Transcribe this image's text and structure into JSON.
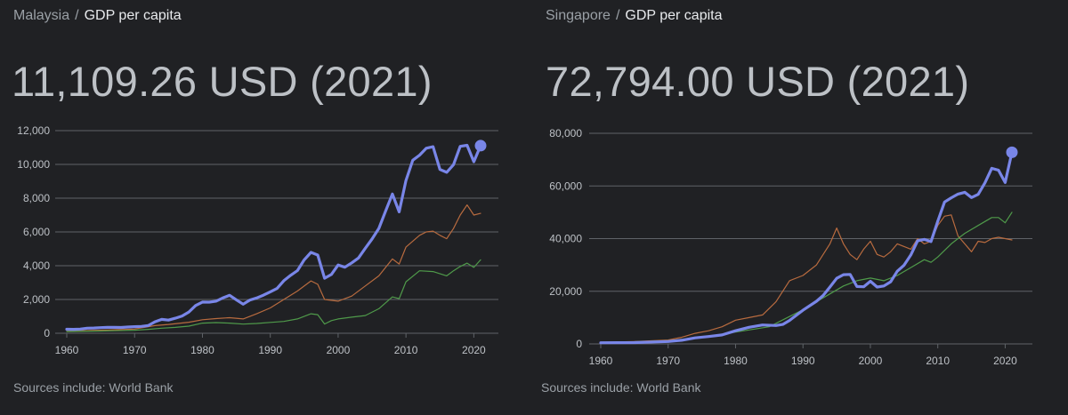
{
  "panels": [
    {
      "country": "Malaysia",
      "separator": "/",
      "metric": "GDP per capita",
      "headline_value": "11,109.26 USD (2021)",
      "sources": "Sources include: World Bank"
    },
    {
      "country": "Singapore",
      "separator": "/",
      "metric": "GDP per capita",
      "headline_value": "72,794.00 USD (2021)",
      "sources": "Sources include: World Bank"
    }
  ],
  "colors": {
    "background": "#202124",
    "primary_series": "#7986e8",
    "comparison_series_1": "#b86b3f",
    "comparison_series_2": "#4f9a4a",
    "gridline": "#5f6368",
    "text": "#bdc1c6"
  },
  "chart_data": [
    {
      "type": "line",
      "x_ticks": [
        1960,
        1970,
        1980,
        1990,
        2000,
        2010,
        2020
      ],
      "y_ticks": [
        0,
        2000,
        4000,
        6000,
        8000,
        10000,
        12000
      ],
      "y_tick_labels": [
        "0",
        "2,000",
        "4,000",
        "6,000",
        "8,000",
        "10,000",
        "12,000"
      ],
      "x_tick_labels": [
        "1960",
        "1970",
        "1980",
        "1990",
        "2000",
        "2010",
        "2020"
      ],
      "xlim": [
        1960,
        2021
      ],
      "ylim": [
        0,
        12000
      ],
      "grid": true,
      "series": [
        {
          "role": "primary",
          "x": [
            1960,
            1961,
            1962,
            1963,
            1964,
            1965,
            1966,
            1967,
            1968,
            1969,
            1970,
            1971,
            1972,
            1973,
            1974,
            1975,
            1976,
            1977,
            1978,
            1979,
            1980,
            1981,
            1982,
            1983,
            1984,
            1985,
            1986,
            1987,
            1988,
            1989,
            1990,
            1991,
            1992,
            1993,
            1994,
            1995,
            1996,
            1997,
            1998,
            1999,
            2000,
            2001,
            2002,
            2003,
            2004,
            2005,
            2006,
            2007,
            2008,
            2009,
            2010,
            2011,
            2012,
            2013,
            2014,
            2015,
            2016,
            2017,
            2018,
            2019,
            2020,
            2021
          ],
          "y": [
            235,
            232,
            246,
            300,
            310,
            330,
            345,
            350,
            340,
            370,
            390,
            405,
            450,
            680,
            820,
            780,
            890,
            1020,
            1260,
            1640,
            1850,
            1840,
            1900,
            2090,
            2250,
            1980,
            1720,
            1970,
            2090,
            2260,
            2450,
            2650,
            3110,
            3430,
            3710,
            4350,
            4790,
            4630,
            3260,
            3480,
            4040,
            3910,
            4170,
            4460,
            5030,
            5580,
            6210,
            7240,
            8250,
            7190,
            9040,
            10250,
            10550,
            10960,
            11050,
            9700,
            9530,
            9980,
            11070,
            11130,
            10160,
            11109
          ]
        },
        {
          "role": "comparison",
          "x": [
            1960,
            1965,
            1970,
            1973,
            1975,
            1978,
            1980,
            1982,
            1984,
            1986,
            1988,
            1990,
            1992,
            1994,
            1996,
            1997,
            1998,
            2000,
            2002,
            2004,
            2006,
            2008,
            2009,
            2010,
            2012,
            2013,
            2014,
            2015,
            2016,
            2017,
            2018,
            2019,
            2020,
            2021
          ],
          "y": [
            120,
            180,
            250,
            450,
            520,
            650,
            800,
            870,
            920,
            850,
            1150,
            1500,
            2000,
            2500,
            3100,
            2900,
            2000,
            1900,
            2200,
            2800,
            3400,
            4400,
            4100,
            5100,
            5800,
            6000,
            6050,
            5800,
            5600,
            6200,
            7000,
            7600,
            7000,
            7100
          ]
        },
        {
          "role": "comparison",
          "x": [
            1960,
            1965,
            1970,
            1972,
            1974,
            1976,
            1978,
            1980,
            1982,
            1984,
            1986,
            1988,
            1990,
            1992,
            1994,
            1996,
            1997,
            1998,
            1999,
            2000,
            2002,
            2004,
            2006,
            2008,
            2009,
            2010,
            2012,
            2014,
            2016,
            2017,
            2018,
            2019,
            2020,
            2021
          ],
          "y": [
            100,
            130,
            180,
            230,
            300,
            350,
            420,
            600,
            630,
            600,
            540,
            580,
            640,
            700,
            850,
            1150,
            1100,
            550,
            750,
            850,
            950,
            1050,
            1450,
            2150,
            2050,
            3050,
            3700,
            3650,
            3400,
            3700,
            3950,
            4150,
            3900,
            4350
          ]
        }
      ],
      "highlight_point": {
        "x": 2021,
        "y": 11109
      }
    },
    {
      "type": "line",
      "x_ticks": [
        1960,
        1970,
        1980,
        1990,
        2000,
        2010,
        2020
      ],
      "y_ticks": [
        0,
        20000,
        40000,
        60000,
        80000
      ],
      "y_tick_labels": [
        "0",
        "20,000",
        "40,000",
        "60,000",
        "80,000"
      ],
      "x_tick_labels": [
        "1960",
        "1970",
        "1980",
        "1990",
        "2000",
        "2010",
        "2020"
      ],
      "xlim": [
        1960,
        2021
      ],
      "ylim": [
        0,
        80000
      ],
      "grid": true,
      "series": [
        {
          "role": "primary",
          "x": [
            1960,
            1965,
            1970,
            1972,
            1974,
            1976,
            1978,
            1980,
            1982,
            1984,
            1986,
            1987,
            1988,
            1990,
            1992,
            1993,
            1994,
            1995,
            1996,
            1997,
            1998,
            1999,
            2000,
            2001,
            2002,
            2003,
            2004,
            2005,
            2006,
            2007,
            2008,
            2009,
            2010,
            2011,
            2012,
            2013,
            2014,
            2015,
            2016,
            2017,
            2018,
            2019,
            2020,
            2021
          ],
          "y": [
            430,
            520,
            920,
            1400,
            2300,
            2800,
            3400,
            5000,
            6300,
            7200,
            7000,
            7400,
            8900,
            12800,
            16200,
            18400,
            21600,
            24900,
            26300,
            26400,
            21800,
            21700,
            23800,
            21600,
            22000,
            23600,
            27600,
            29900,
            33800,
            39200,
            39700,
            38900,
            46600,
            53900,
            55500,
            56900,
            57600,
            55600,
            56800,
            61200,
            66700,
            66000,
            61300,
            72794
          ]
        },
        {
          "role": "comparison",
          "x": [
            1960,
            1965,
            1970,
            1972,
            1974,
            1976,
            1978,
            1980,
            1982,
            1984,
            1986,
            1988,
            1990,
            1992,
            1994,
            1995,
            1996,
            1997,
            1998,
            1999,
            2000,
            2001,
            2002,
            2003,
            2004,
            2005,
            2006,
            2007,
            2008,
            2009,
            2010,
            2011,
            2012,
            2013,
            2014,
            2015,
            2016,
            2017,
            2018,
            2019,
            2020,
            2021
          ],
          "y": [
            600,
            900,
            1500,
            2500,
            4000,
            5000,
            6500,
            9000,
            10000,
            11000,
            16000,
            24000,
            26000,
            30000,
            38000,
            44000,
            38000,
            34000,
            32000,
            36000,
            39000,
            34000,
            33000,
            35000,
            38000,
            37000,
            36000,
            40000,
            38000,
            39000,
            45000,
            48500,
            49000,
            41000,
            38000,
            35000,
            39000,
            38500,
            40000,
            40500,
            40000,
            39500
          ]
        },
        {
          "role": "comparison",
          "x": [
            1960,
            1965,
            1970,
            1975,
            1980,
            1985,
            1990,
            1992,
            1994,
            1996,
            1998,
            2000,
            2002,
            2004,
            2006,
            2008,
            2009,
            2010,
            2012,
            2014,
            2016,
            2018,
            2019,
            2020,
            2021
          ],
          "y": [
            500,
            800,
            1200,
            2500,
            4500,
            6500,
            13000,
            16000,
            19000,
            22000,
            24000,
            25000,
            24000,
            26000,
            29000,
            32000,
            31000,
            33000,
            38000,
            42000,
            45000,
            48000,
            48000,
            46000,
            50000
          ]
        }
      ],
      "highlight_point": {
        "x": 2021,
        "y": 72794
      }
    }
  ]
}
